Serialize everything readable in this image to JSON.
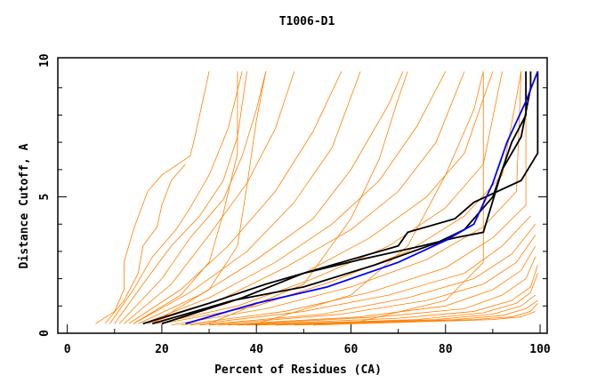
{
  "chart_data": {
    "type": "line",
    "title": "T1006-D1",
    "xlabel": "Percent of Residues (CA)",
    "ylabel": "Distance Cutoff, A",
    "xlim": [
      -2,
      101.5
    ],
    "ylim": [
      0,
      10.1
    ],
    "xticks": [
      "0",
      "20",
      "40",
      "60",
      "80",
      "100"
    ],
    "yticks": [
      "0",
      "5",
      "10"
    ],
    "grid": false,
    "colors": {
      "others": "#ff8000",
      "black": "#000000",
      "blue": "#0000ff"
    },
    "orange_series": [
      [
        [
          6,
          0.35
        ],
        [
          10,
          0.8
        ],
        [
          12,
          1.6
        ],
        [
          12,
          2.6
        ],
        [
          14,
          3.8
        ],
        [
          17,
          5.2
        ],
        [
          20,
          5.8
        ],
        [
          26,
          6.5
        ],
        [
          27,
          7.2
        ],
        [
          30,
          9.6
        ]
      ],
      [
        [
          8,
          0.35
        ],
        [
          12,
          1.2
        ],
        [
          15,
          2.2
        ],
        [
          16,
          3.2
        ],
        [
          19,
          3.9
        ],
        [
          20,
          4.7
        ],
        [
          22,
          5.6
        ],
        [
          25,
          6.2
        ]
      ],
      [
        [
          9,
          0.35
        ],
        [
          14,
          1.6
        ],
        [
          18,
          2.8
        ],
        [
          23,
          3.8
        ],
        [
          26,
          4.6
        ],
        [
          30,
          5.8
        ],
        [
          34,
          7.5
        ],
        [
          37,
          9.6
        ]
      ],
      [
        [
          10,
          0.35
        ],
        [
          16,
          1.8
        ],
        [
          22,
          3.2
        ],
        [
          28,
          4.3
        ],
        [
          33,
          5.6
        ],
        [
          36,
          7.2
        ],
        [
          38,
          9.6
        ]
      ],
      [
        [
          11,
          0.35
        ],
        [
          20,
          2
        ],
        [
          26,
          3.5
        ],
        [
          33,
          4.9
        ],
        [
          37,
          6.5
        ],
        [
          40,
          8.2
        ],
        [
          42,
          9.6
        ]
      ],
      [
        [
          12,
          0.35
        ],
        [
          22,
          1.8
        ],
        [
          30,
          3.6
        ],
        [
          38,
          5.5
        ],
        [
          44,
          7.5
        ],
        [
          48,
          9.6
        ]
      ],
      [
        [
          13,
          0.35
        ],
        [
          24,
          1.6
        ],
        [
          34,
          3.2
        ],
        [
          44,
          5.2
        ],
        [
          52,
          7.4
        ],
        [
          58,
          9.6
        ]
      ],
      [
        [
          14,
          0.35
        ],
        [
          26,
          1.5
        ],
        [
          38,
          3
        ],
        [
          48,
          4.8
        ],
        [
          56,
          6.8
        ],
        [
          62,
          9.6
        ]
      ],
      [
        [
          15,
          0.35
        ],
        [
          28,
          1.4
        ],
        [
          40,
          2.7
        ],
        [
          52,
          4.2
        ],
        [
          60,
          6
        ],
        [
          68,
          8.4
        ],
        [
          71,
          9.6
        ]
      ],
      [
        [
          16,
          0.35
        ],
        [
          30,
          1.3
        ],
        [
          44,
          2.6
        ],
        [
          56,
          4
        ],
        [
          66,
          5.6
        ],
        [
          74,
          7.6
        ],
        [
          80,
          9.6
        ]
      ],
      [
        [
          17,
          0.35
        ],
        [
          32,
          1.2
        ],
        [
          46,
          2.4
        ],
        [
          60,
          3.8
        ],
        [
          70,
          5.2
        ],
        [
          78,
          7
        ],
        [
          84,
          9.6
        ]
      ],
      [
        [
          18,
          0.35
        ],
        [
          34,
          1.1
        ],
        [
          50,
          2.2
        ],
        [
          64,
          3.5
        ],
        [
          76,
          5
        ],
        [
          84,
          6.6
        ],
        [
          90,
          9.6
        ]
      ],
      [
        [
          19,
          0.35
        ],
        [
          36,
          1
        ],
        [
          52,
          2
        ],
        [
          68,
          3.2
        ],
        [
          80,
          4.6
        ],
        [
          88,
          6.2
        ],
        [
          92,
          9.6
        ]
      ],
      [
        [
          20,
          0.35
        ],
        [
          40,
          1
        ],
        [
          56,
          1.9
        ],
        [
          72,
          3
        ],
        [
          84,
          4.3
        ],
        [
          92,
          5.8
        ],
        [
          96,
          9.6
        ]
      ],
      [
        [
          22,
          0.3
        ],
        [
          42,
          0.9
        ],
        [
          60,
          1.7
        ],
        [
          76,
          2.7
        ],
        [
          88,
          3.9
        ],
        [
          95,
          5.2
        ],
        [
          96,
          9.6
        ]
      ],
      [
        [
          24,
          0.3
        ],
        [
          46,
          0.8
        ],
        [
          64,
          1.5
        ],
        [
          80,
          2.4
        ],
        [
          90,
          3.5
        ],
        [
          97,
          4.7
        ],
        [
          97,
          9.6
        ]
      ],
      [
        [
          26,
          0.3
        ],
        [
          50,
          0.8
        ],
        [
          68,
          1.4
        ],
        [
          84,
          2.2
        ],
        [
          92,
          3.2
        ],
        [
          98,
          4.3
        ]
      ],
      [
        [
          28,
          0.3
        ],
        [
          54,
          0.7
        ],
        [
          72,
          1.3
        ],
        [
          86,
          2
        ],
        [
          94,
          2.9
        ],
        [
          99,
          4
        ]
      ],
      [
        [
          30,
          0.3
        ],
        [
          58,
          0.7
        ],
        [
          76,
          1.2
        ],
        [
          88,
          1.8
        ],
        [
          95,
          2.6
        ],
        [
          99,
          3.6
        ]
      ],
      [
        [
          32,
          0.3
        ],
        [
          62,
          0.6
        ],
        [
          80,
          1
        ],
        [
          90,
          1.6
        ],
        [
          96,
          2.3
        ],
        [
          99,
          3.2
        ]
      ],
      [
        [
          34,
          0.3
        ],
        [
          66,
          0.6
        ],
        [
          84,
          0.9
        ],
        [
          92,
          1.4
        ],
        [
          97,
          2
        ],
        [
          99,
          2.8
        ]
      ],
      [
        [
          36,
          0.3
        ],
        [
          70,
          0.55
        ],
        [
          86,
          0.8
        ],
        [
          94,
          1.2
        ],
        [
          98,
          1.7
        ],
        [
          99.5,
          2.5
        ]
      ],
      [
        [
          38,
          0.3
        ],
        [
          74,
          0.5
        ],
        [
          88,
          0.75
        ],
        [
          95,
          1.1
        ],
        [
          98,
          1.5
        ],
        [
          99.5,
          2.2
        ]
      ],
      [
        [
          40,
          0.3
        ],
        [
          78,
          0.5
        ],
        [
          90,
          0.7
        ],
        [
          96,
          1
        ],
        [
          99,
          1.4
        ]
      ],
      [
        [
          44,
          0.3
        ],
        [
          82,
          0.5
        ],
        [
          92,
          0.65
        ],
        [
          97,
          0.9
        ],
        [
          99.5,
          1.2
        ]
      ],
      [
        [
          48,
          0.3
        ],
        [
          86,
          0.5
        ],
        [
          94,
          0.6
        ],
        [
          98,
          0.8
        ],
        [
          99.5,
          1.1
        ]
      ],
      [
        [
          52,
          0.3
        ],
        [
          90,
          0.5
        ],
        [
          96,
          0.6
        ],
        [
          99,
          0.8
        ]
      ],
      [
        [
          18,
          0.35
        ],
        [
          30,
          1.6
        ],
        [
          36,
          3.2
        ],
        [
          38,
          5.4
        ],
        [
          40,
          7.8
        ],
        [
          42,
          9.6
        ]
      ],
      [
        [
          14,
          0.35
        ],
        [
          24,
          1.4
        ],
        [
          30,
          2.6
        ],
        [
          33,
          4.4
        ],
        [
          36,
          6.6
        ],
        [
          36,
          9.6
        ]
      ],
      [
        [
          30,
          0.35
        ],
        [
          50,
          1.8
        ],
        [
          60,
          4.2
        ],
        [
          66,
          6.4
        ],
        [
          70,
          8.6
        ],
        [
          72,
          9.6
        ]
      ],
      [
        [
          40,
          0.35
        ],
        [
          60,
          1.4
        ],
        [
          72,
          3.2
        ],
        [
          80,
          5.8
        ],
        [
          86,
          8.2
        ],
        [
          88,
          9.6
        ]
      ],
      [
        [
          60,
          0.35
        ],
        [
          80,
          1.2
        ],
        [
          88,
          2.6
        ],
        [
          88,
          5
        ],
        [
          88,
          9.6
        ]
      ]
    ],
    "black_series": [
      [
        [
          16,
          0.35
        ],
        [
          30,
          1.1
        ],
        [
          42,
          1.8
        ],
        [
          60,
          2.7
        ],
        [
          70,
          3.2
        ],
        [
          72,
          3.7
        ],
        [
          82,
          4.2
        ],
        [
          86,
          4.8
        ],
        [
          96,
          5.6
        ],
        [
          99.5,
          6.6
        ],
        [
          99.5,
          9.6
        ]
      ],
      [
        [
          20,
          0.35
        ],
        [
          37,
          1.3
        ],
        [
          50,
          2.2
        ],
        [
          62,
          2.7
        ],
        [
          75,
          3.2
        ],
        [
          82,
          3.5
        ],
        [
          88,
          3.7
        ],
        [
          92,
          6
        ],
        [
          96,
          7.2
        ],
        [
          98,
          9
        ],
        [
          98,
          9.6
        ]
      ],
      [
        [
          18,
          0.35
        ],
        [
          35,
          1.2
        ],
        [
          50,
          1.7
        ],
        [
          65,
          2.5
        ],
        [
          78,
          3.3
        ],
        [
          84,
          3.8
        ],
        [
          90,
          5
        ],
        [
          94,
          7
        ],
        [
          97,
          8
        ],
        [
          97,
          9.6
        ]
      ]
    ],
    "blue_series": [
      [
        [
          25,
          0.35
        ],
        [
          40,
          1.1
        ],
        [
          55,
          1.7
        ],
        [
          70,
          2.6
        ],
        [
          80,
          3.4
        ],
        [
          86,
          4
        ],
        [
          90,
          5.5
        ],
        [
          93,
          7
        ],
        [
          97,
          8.5
        ],
        [
          99.5,
          9.6
        ]
      ]
    ]
  }
}
